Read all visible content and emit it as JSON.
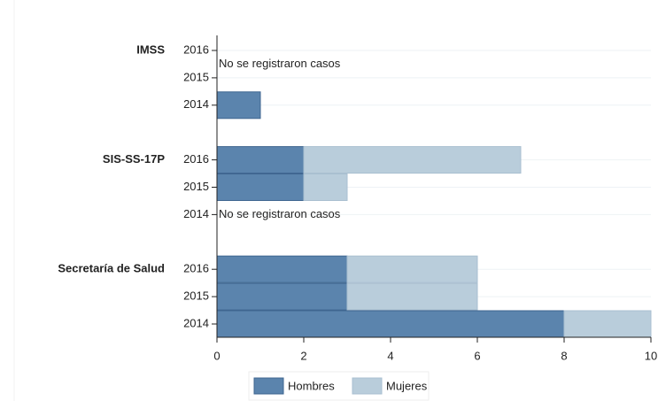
{
  "chart_data": {
    "type": "bar",
    "orientation": "horizontal",
    "stacked": true,
    "groups": [
      {
        "name": "IMSS",
        "categories": [
          "2016",
          "2015",
          "2014"
        ],
        "note": "No se registraron casos"
      },
      {
        "name": "SIS-SS-17P",
        "categories": [
          "2016",
          "2015",
          "2014"
        ],
        "note": "No se registraron casos"
      },
      {
        "name": "Secretaría de Salud",
        "categories": [
          "2016",
          "2015",
          "2014"
        ]
      }
    ],
    "series": [
      {
        "name": "Hombres",
        "color": "#5b84ad",
        "values": [
          null,
          null,
          1,
          2,
          2,
          null,
          3,
          3,
          8
        ]
      },
      {
        "name": "Mujeres",
        "color": "#b9cddb",
        "values": [
          null,
          null,
          0,
          5,
          1,
          null,
          3,
          3,
          2
        ]
      }
    ],
    "xlim": [
      0,
      10
    ],
    "xticks": [
      0,
      2,
      4,
      6,
      8,
      10
    ],
    "grid": true,
    "legend": "bottom"
  }
}
